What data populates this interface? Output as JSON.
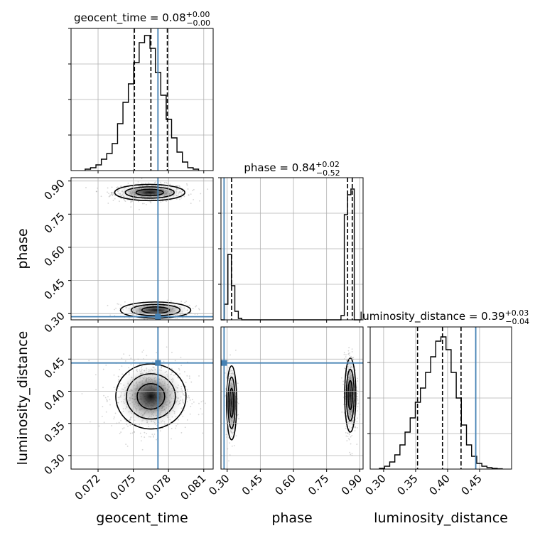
{
  "chart_data": {
    "type": "corner",
    "params": [
      "geocent_time",
      "phase",
      "luminosity_distance"
    ],
    "axis_labels": {
      "geocent_time": "geocent_time",
      "phase": "phase",
      "luminosity_distance": "luminosity_distance"
    },
    "ranges": {
      "geocent_time": [
        0.0697,
        0.0818
      ],
      "phase": [
        0.272,
        0.915
      ],
      "luminosity_distance": [
        0.279,
        0.5
      ]
    },
    "ticks": {
      "geocent_time": [
        0.072,
        0.075,
        0.078,
        0.081
      ],
      "phase": [
        0.3,
        0.45,
        0.6,
        0.75,
        0.9
      ],
      "luminosity_distance": [
        0.3,
        0.35,
        0.4,
        0.45
      ]
    },
    "tick_labels": {
      "geocent_time": [
        "0.072",
        "0.075",
        "0.078",
        "0.081"
      ],
      "phase": [
        "0.30",
        "0.45",
        "0.60",
        "0.75",
        "0.90"
      ],
      "luminosity_distance": [
        "0.30",
        "0.35",
        "0.40",
        "0.45"
      ]
    },
    "titles": {
      "geocent_time": {
        "name": "geocent_time",
        "median": "0.08",
        "upper": "+0.00",
        "lower": "−0.00"
      },
      "phase": {
        "name": "phase",
        "median": "0.84",
        "upper": "+0.02",
        "lower": "−0.52"
      },
      "luminosity_distance": {
        "name": "luminosity_distance",
        "median": "0.39",
        "upper": "+0.03",
        "lower": "−0.04"
      }
    },
    "quantiles": {
      "geocent_time": [
        0.0751,
        0.0765,
        0.0779
      ],
      "phase": [
        0.32,
        0.845,
        0.866
      ],
      "luminosity_distance": [
        0.353,
        0.392,
        0.421
      ]
    },
    "truths": {
      "geocent_time": 0.0771,
      "phase": 0.286,
      "luminosity_distance": 0.444
    },
    "histograms": {
      "geocent_time": {
        "edges": [
          0.0709,
          0.07136,
          0.07182,
          0.07228,
          0.07274,
          0.0732,
          0.07366,
          0.07412,
          0.07458,
          0.07504,
          0.0755,
          0.07596,
          0.07642,
          0.07688,
          0.07734,
          0.0778,
          0.07826,
          0.07872,
          0.07918,
          0.07964,
          0.0801,
          0.08056
        ],
        "counts": [
          0.01,
          0.02,
          0.04,
          0.08,
          0.12,
          0.19,
          0.33,
          0.48,
          0.61,
          0.76,
          0.9,
          0.95,
          0.86,
          0.69,
          0.53,
          0.36,
          0.23,
          0.13,
          0.06,
          0.02,
          0.01
        ]
      },
      "phase": {
        "edges": [
          0.272,
          0.2877,
          0.3034,
          0.3191,
          0.3348,
          0.3505,
          0.3662,
          0.38,
          0.8,
          0.815,
          0.83,
          0.845,
          0.86,
          0.875,
          0.89,
          0.905
        ],
        "counts": [
          0.0,
          0.11,
          0.46,
          0.24,
          0.06,
          0.01,
          0.0,
          0.0,
          0.0,
          0.03,
          0.74,
          0.88,
          0.92,
          0.0,
          0.0
        ]
      },
      "luminosity_distance": {
        "edges": [
          0.2935,
          0.3015,
          0.3095,
          0.3175,
          0.3255,
          0.3335,
          0.3415,
          0.3495,
          0.3575,
          0.3655,
          0.3735,
          0.3815,
          0.3895,
          0.3975,
          0.4055,
          0.4135,
          0.4215,
          0.4295,
          0.4375,
          0.4455,
          0.4535,
          0.4615,
          0.4695,
          0.4775,
          0.4855
        ],
        "counts": [
          0.005,
          0.02,
          0.05,
          0.1,
          0.17,
          0.26,
          0.36,
          0.47,
          0.57,
          0.68,
          0.79,
          0.9,
          0.93,
          0.84,
          0.68,
          0.5,
          0.31,
          0.17,
          0.09,
          0.04,
          0.02,
          0.01,
          0.005,
          0.002
        ]
      }
    },
    "gridlines": true,
    "colors": {
      "line": "#000000",
      "truth": "#4682b4",
      "grid": "#b0b0b0",
      "samples": "#888888"
    }
  }
}
